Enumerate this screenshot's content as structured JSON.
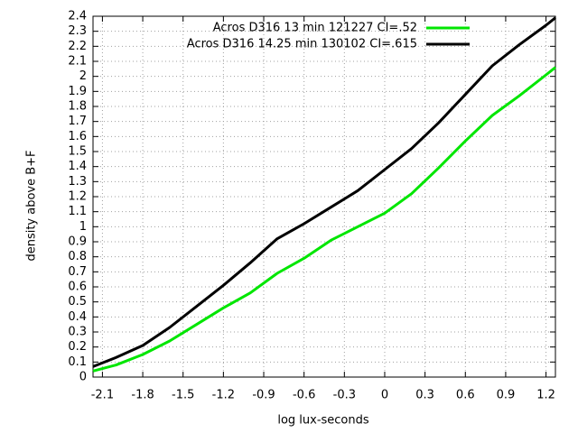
{
  "chart_data": {
    "type": "line",
    "xlabel": "log lux-seconds",
    "ylabel": "density above B+F",
    "x": [
      -2.17,
      -2.0,
      -1.8,
      -1.6,
      -1.4,
      -1.2,
      -1.0,
      -0.8,
      -0.6,
      -0.4,
      -0.2,
      0,
      0.2,
      0.4,
      0.6,
      0.8,
      1.0,
      1.2,
      1.27
    ],
    "series": [
      {
        "name": "Acros D316 13 min 121227 CI=.52",
        "color": "#00e600",
        "values": [
          0.04,
          0.08,
          0.15,
          0.24,
          0.35,
          0.46,
          0.56,
          0.69,
          0.79,
          0.91,
          1.0,
          1.09,
          1.22,
          1.39,
          1.57,
          1.74,
          1.87,
          2.01,
          2.06
        ]
      },
      {
        "name": "Acros D316 14.25 min 130102 CI=.615",
        "color": "#000000",
        "values": [
          0.07,
          0.13,
          0.21,
          0.33,
          0.47,
          0.61,
          0.76,
          0.92,
          1.02,
          1.13,
          1.24,
          1.38,
          1.52,
          1.69,
          1.88,
          2.07,
          2.21,
          2.34,
          2.39
        ]
      }
    ],
    "xlim": [
      -2.17,
      1.27
    ],
    "xticks": [
      -2.1,
      -1.8,
      -1.5,
      -1.2,
      -0.9,
      -0.6,
      -0.3,
      0,
      0.3,
      0.6,
      0.9,
      1.2
    ],
    "ylim": [
      0,
      2.4
    ],
    "yticks": [
      0,
      0.1,
      0.2,
      0.3,
      0.4,
      0.5,
      0.6,
      0.7,
      0.8,
      0.9,
      1,
      1.1,
      1.2,
      1.3,
      1.4,
      1.5,
      1.6,
      1.7,
      1.8,
      1.9,
      2,
      2.1,
      2.2,
      2.3,
      2.4
    ],
    "grid": true,
    "legend": "top-right"
  }
}
